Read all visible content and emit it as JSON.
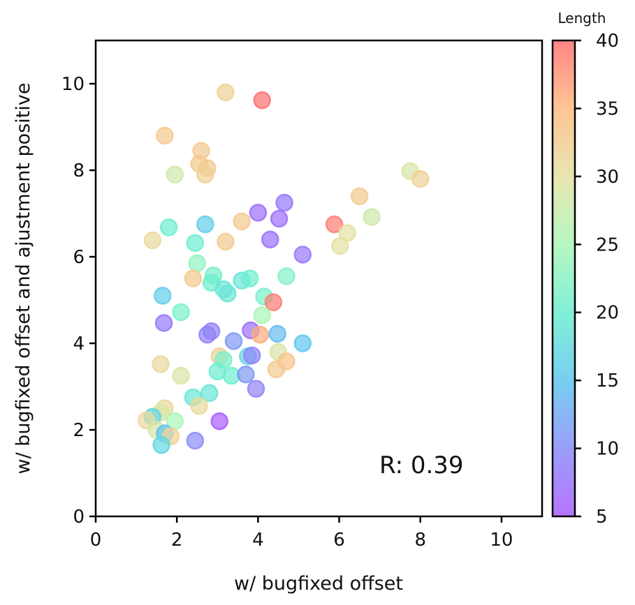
{
  "chart_data": {
    "type": "scatter",
    "xlabel": "w/ bugfixed offset",
    "ylabel": "w/ bugfixed offset and ajustment positive",
    "xlim": [
      0,
      11
    ],
    "ylim": [
      0,
      11
    ],
    "xticks": [
      "0",
      "2",
      "4",
      "6",
      "8",
      "10"
    ],
    "yticks": [
      "0",
      "2",
      "4",
      "6",
      "8",
      "10"
    ],
    "annotation": "R: 0.39",
    "colorbar": {
      "label": "Length",
      "colormap": "rainbow",
      "range": [
        5,
        40
      ],
      "ticks": [
        "5",
        "10",
        "15",
        "20",
        "25",
        "30",
        "35",
        "40"
      ]
    },
    "grid": false,
    "points": [
      {
        "x": 3.2,
        "y": 9.8,
        "c": 32
      },
      {
        "x": 4.1,
        "y": 9.62,
        "c": 40
      },
      {
        "x": 1.7,
        "y": 8.8,
        "c": 33
      },
      {
        "x": 2.6,
        "y": 8.45,
        "c": 33
      },
      {
        "x": 2.55,
        "y": 8.15,
        "c": 33
      },
      {
        "x": 2.75,
        "y": 8.05,
        "c": 33
      },
      {
        "x": 2.7,
        "y": 7.9,
        "c": 32
      },
      {
        "x": 1.95,
        "y": 7.9,
        "c": 28
      },
      {
        "x": 7.75,
        "y": 7.98,
        "c": 29
      },
      {
        "x": 8.0,
        "y": 7.8,
        "c": 32
      },
      {
        "x": 6.5,
        "y": 7.4,
        "c": 33
      },
      {
        "x": 6.8,
        "y": 6.92,
        "c": 28
      },
      {
        "x": 5.88,
        "y": 6.75,
        "c": 39
      },
      {
        "x": 6.2,
        "y": 6.55,
        "c": 30
      },
      {
        "x": 6.02,
        "y": 6.25,
        "c": 30
      },
      {
        "x": 4.65,
        "y": 7.25,
        "c": 8
      },
      {
        "x": 4.0,
        "y": 7.02,
        "c": 7
      },
      {
        "x": 4.52,
        "y": 6.88,
        "c": 7
      },
      {
        "x": 3.6,
        "y": 6.82,
        "c": 33
      },
      {
        "x": 2.7,
        "y": 6.75,
        "c": 16
      },
      {
        "x": 1.8,
        "y": 6.68,
        "c": 20
      },
      {
        "x": 1.4,
        "y": 6.38,
        "c": 31
      },
      {
        "x": 3.2,
        "y": 6.35,
        "c": 33
      },
      {
        "x": 4.3,
        "y": 6.4,
        "c": 7
      },
      {
        "x": 2.45,
        "y": 6.32,
        "c": 20
      },
      {
        "x": 5.1,
        "y": 6.05,
        "c": 8
      },
      {
        "x": 2.5,
        "y": 5.85,
        "c": 23
      },
      {
        "x": 2.9,
        "y": 5.57,
        "c": 21
      },
      {
        "x": 2.85,
        "y": 5.4,
        "c": 20
      },
      {
        "x": 2.4,
        "y": 5.5,
        "c": 33
      },
      {
        "x": 3.6,
        "y": 5.45,
        "c": 19
      },
      {
        "x": 3.8,
        "y": 5.5,
        "c": 20
      },
      {
        "x": 4.7,
        "y": 5.55,
        "c": 22
      },
      {
        "x": 3.15,
        "y": 5.25,
        "c": 19
      },
      {
        "x": 3.25,
        "y": 5.15,
        "c": 19
      },
      {
        "x": 4.15,
        "y": 5.08,
        "c": 21
      },
      {
        "x": 1.65,
        "y": 5.1,
        "c": 16
      },
      {
        "x": 4.38,
        "y": 4.95,
        "c": 39
      },
      {
        "x": 2.1,
        "y": 4.72,
        "c": 21
      },
      {
        "x": 4.1,
        "y": 4.65,
        "c": 25
      },
      {
        "x": 1.68,
        "y": 4.47,
        "c": 8
      },
      {
        "x": 2.85,
        "y": 4.28,
        "c": 9
      },
      {
        "x": 2.75,
        "y": 4.2,
        "c": 9
      },
      {
        "x": 3.82,
        "y": 4.3,
        "c": 7
      },
      {
        "x": 4.05,
        "y": 4.2,
        "c": 36
      },
      {
        "x": 4.48,
        "y": 4.22,
        "c": 14
      },
      {
        "x": 5.1,
        "y": 4.0,
        "c": 15
      },
      {
        "x": 3.4,
        "y": 4.05,
        "c": 11
      },
      {
        "x": 4.5,
        "y": 3.8,
        "c": 29
      },
      {
        "x": 3.05,
        "y": 3.7,
        "c": 32
      },
      {
        "x": 3.15,
        "y": 3.62,
        "c": 21
      },
      {
        "x": 3.75,
        "y": 3.7,
        "c": 17
      },
      {
        "x": 3.85,
        "y": 3.72,
        "c": 9
      },
      {
        "x": 4.7,
        "y": 3.58,
        "c": 34
      },
      {
        "x": 1.6,
        "y": 3.52,
        "c": 31
      },
      {
        "x": 4.45,
        "y": 3.4,
        "c": 33
      },
      {
        "x": 3.0,
        "y": 3.35,
        "c": 20
      },
      {
        "x": 3.35,
        "y": 3.25,
        "c": 20
      },
      {
        "x": 3.7,
        "y": 3.28,
        "c": 11
      },
      {
        "x": 2.1,
        "y": 3.25,
        "c": 29
      },
      {
        "x": 3.95,
        "y": 2.95,
        "c": 9
      },
      {
        "x": 2.8,
        "y": 2.85,
        "c": 19
      },
      {
        "x": 2.4,
        "y": 2.75,
        "c": 19
      },
      {
        "x": 2.55,
        "y": 2.55,
        "c": 31
      },
      {
        "x": 1.7,
        "y": 2.5,
        "c": 31
      },
      {
        "x": 1.6,
        "y": 2.4,
        "c": 29
      },
      {
        "x": 1.4,
        "y": 2.3,
        "c": 17
      },
      {
        "x": 1.25,
        "y": 2.22,
        "c": 31
      },
      {
        "x": 1.95,
        "y": 2.2,
        "c": 25
      },
      {
        "x": 3.05,
        "y": 2.2,
        "c": 5
      },
      {
        "x": 1.5,
        "y": 2.0,
        "c": 29
      },
      {
        "x": 1.7,
        "y": 1.92,
        "c": 15
      },
      {
        "x": 1.85,
        "y": 1.85,
        "c": 32
      },
      {
        "x": 2.45,
        "y": 1.75,
        "c": 10
      },
      {
        "x": 1.62,
        "y": 1.65,
        "c": 17
      }
    ]
  }
}
